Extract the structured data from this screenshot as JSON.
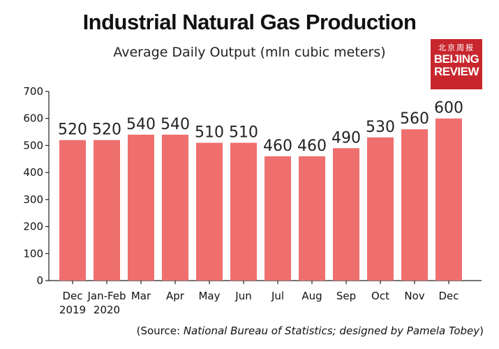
{
  "header": {
    "title": "Industrial Natural Gas Production",
    "subtitle": "Average Daily Output (mln cubic meters)"
  },
  "logo": {
    "chinese": "北京周报",
    "line1": "BEIJING",
    "line2": "REVIEW"
  },
  "source": {
    "prefix": "(Source: ",
    "italic": "National Bureau of Statistics; designed by Pamela Tobey",
    "suffix": ")"
  },
  "colors": {
    "bar": "#ef6f6f",
    "logo_bg": "#c8262d"
  },
  "chart_data": {
    "type": "bar",
    "title": "Industrial Natural Gas Production",
    "subtitle": "Average Daily Output (mln cubic meters)",
    "categories": [
      [
        "Dec",
        "2019"
      ],
      [
        "Jan-Feb",
        "2020"
      ],
      [
        "Mar"
      ],
      [
        "Apr"
      ],
      [
        "May"
      ],
      [
        "Jun"
      ],
      [
        "Jul"
      ],
      [
        "Aug"
      ],
      [
        "Sep"
      ],
      [
        "Oct"
      ],
      [
        "Nov"
      ],
      [
        "Dec"
      ]
    ],
    "values": [
      520,
      520,
      540,
      540,
      510,
      510,
      460,
      460,
      490,
      530,
      560,
      600
    ],
    "ylim": [
      0,
      700
    ],
    "yticks": [
      0,
      100,
      200,
      300,
      400,
      500,
      600,
      700
    ],
    "grid": false,
    "data_labels": true
  }
}
